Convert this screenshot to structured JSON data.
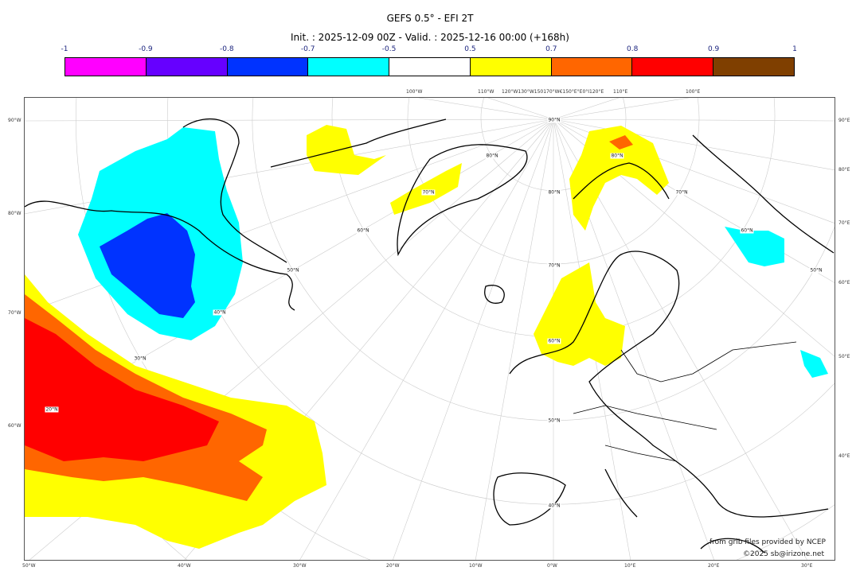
{
  "title": "GEFS 0.5° - EFI 2T",
  "subtitle": "Init. : 2025-12-09 00Z - Valid. : 2025-12-16 00:00 (+168h)",
  "colorbar": {
    "ticks": [
      "-1",
      "-0.9",
      "-0.8",
      "-0.7",
      "-0.5",
      "0.5",
      "0.7",
      "0.8",
      "0.9",
      "1"
    ],
    "colors": [
      "#ff00ff",
      "#6600ff",
      "#0033ff",
      "#00ffff",
      "#ffffff",
      "#ffff00",
      "#ff6600",
      "#ff0000",
      "#7f3f00"
    ]
  },
  "axes": {
    "left": [
      "90°W",
      "80°W",
      "70°W",
      "60°W"
    ],
    "right": [
      "90°E",
      "80°E",
      "70°E",
      "60°E",
      "50°E",
      "40°E"
    ],
    "bottom": [
      "50°W",
      "40°W",
      "30°W",
      "20°W",
      "10°W",
      "0°W",
      "10°E",
      "20°E",
      "30°E"
    ],
    "top": [
      "100°W",
      "110°W",
      "120°W130°W150170°W€150°E°E0°I120°E",
      "110°E",
      "100°E"
    ]
  },
  "lat_labels": [
    "90°N",
    "80°N",
    "70°N",
    "60°N",
    "50°N",
    "40°N",
    "80°N",
    "70°N",
    "60°N",
    "50°N",
    "40°N",
    "30°N",
    "20°N",
    "80°N",
    "70°N",
    "60°N",
    "50°N"
  ],
  "credits": {
    "source": "from grib files provided by NCEP",
    "copyright": "©2025 sb@irizone.net"
  }
}
